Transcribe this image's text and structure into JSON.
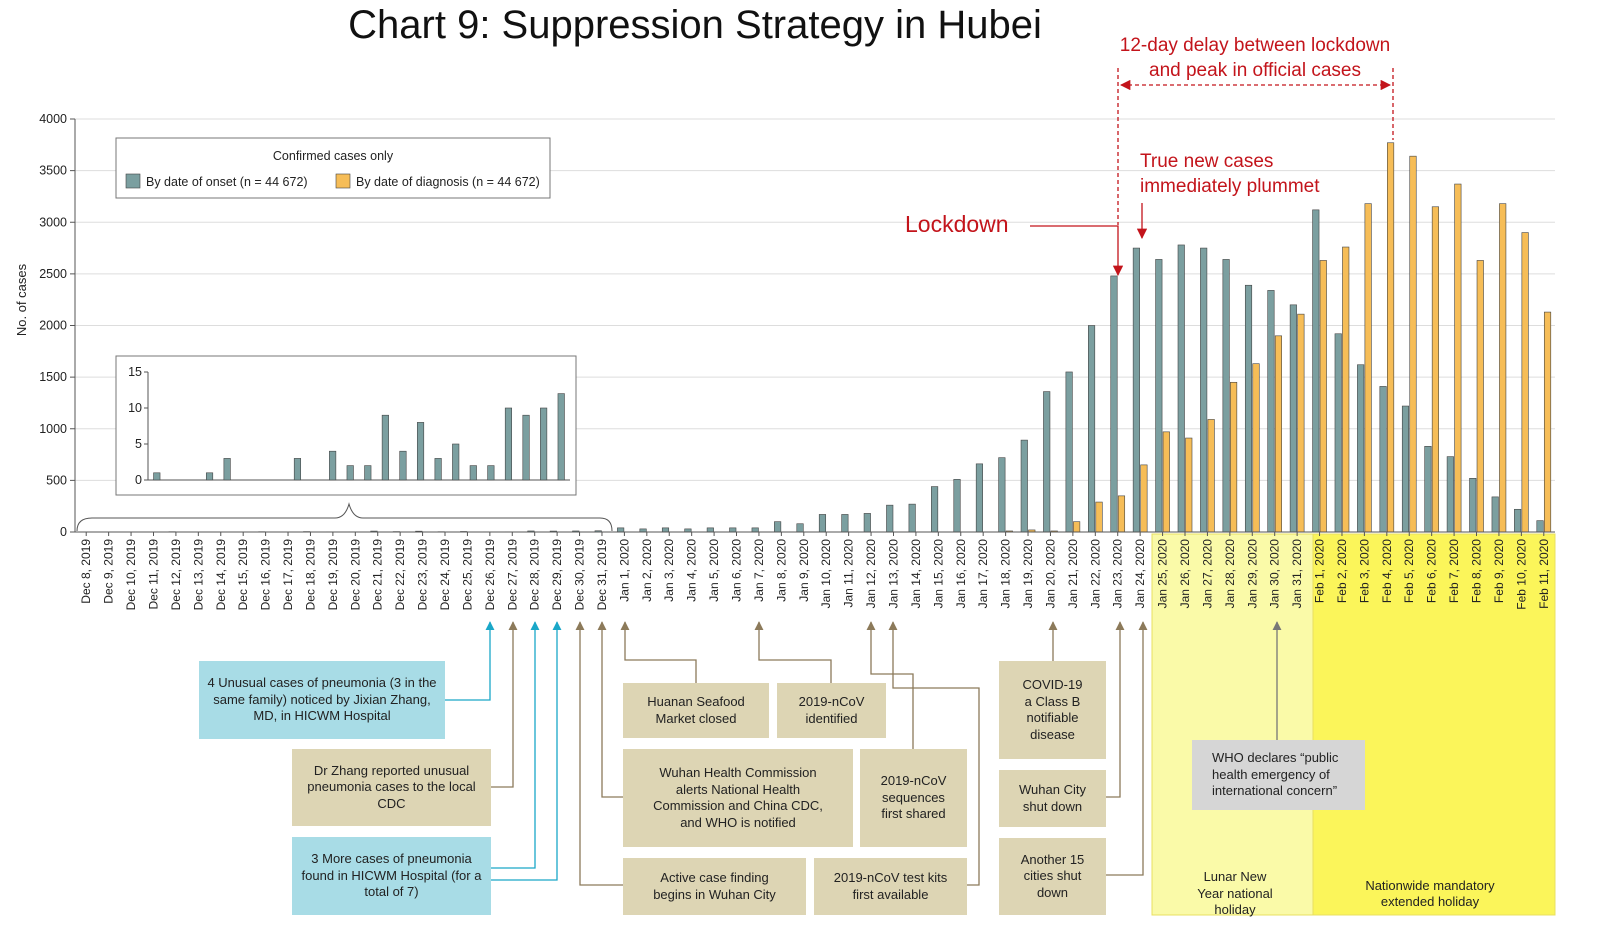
{
  "chart_data": {
    "type": "bar",
    "title": "Chart 9: Suppression Strategy in Hubei",
    "y_label": "No. of cases",
    "legend_title": "Confirmed cases only",
    "categories": [
      "Dec 8, 2019",
      "Dec 9, 2019",
      "Dec 10, 2019",
      "Dec 11, 2019",
      "Dec 12, 2019",
      "Dec 13, 2019",
      "Dec 14, 2019",
      "Dec 15, 2019",
      "Dec 16, 2019",
      "Dec 17, 2019",
      "Dec 18, 2019",
      "Dec 19, 2019",
      "Dec 20, 2019",
      "Dec 21, 2019",
      "Dec 22, 2019",
      "Dec 23, 2019",
      "Dec 24, 2019",
      "Dec 25, 2019",
      "Dec 26, 2019",
      "Dec 27, 2019",
      "Dec 28, 2019",
      "Dec 29, 2019",
      "Dec 30, 2019",
      "Dec 31, 2019",
      "Jan 1, 2020",
      "Jan 2, 2020",
      "Jan 3, 2020",
      "Jan 4, 2020",
      "Jan 5, 2020",
      "Jan 6, 2020",
      "Jan 7, 2020",
      "Jan 8, 2020",
      "Jan 9, 2020",
      "Jan 10, 2020",
      "Jan 11, 2020",
      "Jan 12, 2020",
      "Jan 13, 2020",
      "Jan 14, 2020",
      "Jan 15, 2020",
      "Jan 16, 2020",
      "Jan 17, 2020",
      "Jan 18, 2020",
      "Jan 19, 2020",
      "Jan 20, 2020",
      "Jan 21, 2020",
      "Jan 22, 2020",
      "Jan 23, 2020",
      "Jan 24, 2020",
      "Jan 25, 2020",
      "Jan 26, 2020",
      "Jan 27, 2020",
      "Jan 28, 2020",
      "Jan 29, 2020",
      "Jan 30, 2020",
      "Jan 31, 2020",
      "Feb 1, 2020",
      "Feb 2, 2020",
      "Feb 3, 2020",
      "Feb 4, 2020",
      "Feb 5, 2020",
      "Feb 6, 2020",
      "Feb 7, 2020",
      "Feb 8, 2020",
      "Feb 9, 2020",
      "Feb 10, 2020",
      "Feb 11, 2020"
    ],
    "series": [
      {
        "name": "By date of onset (n = 44 672)",
        "color": "#7b9fa0",
        "values": [
          1,
          0,
          0,
          1,
          3,
          0,
          0,
          0,
          3,
          0,
          4,
          2,
          2,
          9,
          4,
          8,
          3,
          5,
          2,
          2,
          10,
          9,
          10,
          12,
          40,
          30,
          40,
          30,
          40,
          40,
          40,
          100,
          80,
          170,
          170,
          180,
          260,
          270,
          440,
          510,
          660,
          720,
          890,
          1360,
          1550,
          2000,
          2480,
          2750,
          2640,
          2780,
          2750,
          2640,
          2390,
          2340,
          2200,
          3120,
          1920,
          1620,
          1410,
          1220,
          830,
          730,
          520,
          340,
          220,
          110
        ]
      },
      {
        "name": "By date of diagnosis (n = 44 672)",
        "color": "#f6bd57",
        "values": [
          0,
          0,
          0,
          0,
          0,
          0,
          0,
          0,
          0,
          0,
          0,
          0,
          0,
          0,
          0,
          0,
          0,
          0,
          0,
          0,
          0,
          0,
          0,
          0,
          0,
          0,
          0,
          0,
          0,
          0,
          0,
          0,
          0,
          0,
          0,
          0,
          0,
          0,
          0,
          0,
          0,
          10,
          20,
          10,
          100,
          290,
          350,
          650,
          970,
          910,
          1090,
          1450,
          1630,
          1900,
          2110,
          2630,
          2760,
          3180,
          3770,
          3640,
          3150,
          3370,
          2630,
          3180,
          2900,
          2130
        ]
      }
    ],
    "ylim": [
      0,
      4000
    ],
    "yticks": [
      0,
      500,
      1000,
      1500,
      2000,
      2500,
      3000,
      3500,
      4000
    ],
    "grid": true,
    "inset": {
      "ylim": [
        0,
        15
      ],
      "yticks": [
        0,
        5,
        10,
        15
      ]
    },
    "annotations": [
      "4 Unusual cases of pneumonia (3 in the same family) noticed by Jixian Zhang, MD, in HICWM Hospital",
      "Dr Zhang reported unusual pneumonia cases to the local CDC",
      "3 More cases of pneumonia found in HICWM Hospital (for a total of 7)",
      "Huanan Seafood Market closed",
      "2019-nCoV identified",
      "Wuhan Health Commission alerts National Health Commission and China CDC, and WHO is notified",
      "2019-nCoV sequences first shared",
      "Active case finding begins in Wuhan City",
      "2019-nCoV test kits first available",
      "COVID-19 a Class B notifiable disease",
      "Wuhan City shut down",
      "Another 15 cities shut down",
      "WHO declares “public health emergency of international concern”",
      "Lunar New Year national holiday",
      "Nationwide mandatory extended holiday",
      "12-day delay between lockdown and peak in official cases",
      "True new cases immediately plummet",
      "Lockdown"
    ]
  }
}
